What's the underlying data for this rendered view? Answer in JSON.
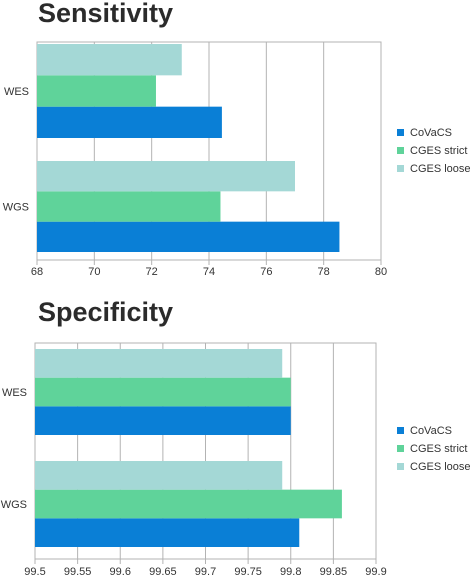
{
  "chart_data": [
    {
      "type": "bar",
      "orientation": "horizontal",
      "title": "Sensitivity",
      "categories": [
        "WES",
        "WGS"
      ],
      "series": [
        {
          "name": "CoVaCS",
          "color": "#0a7fd6",
          "values": [
            74.45,
            78.55
          ]
        },
        {
          "name": "CGES strict",
          "color": "#5fd39a",
          "values": [
            72.15,
            74.4
          ]
        },
        {
          "name": "CGES loose",
          "color": "#a4d8d6",
          "values": [
            73.05,
            77.0
          ]
        }
      ],
      "xlim": [
        68,
        80
      ],
      "xticks": [
        "68",
        "70",
        "72",
        "74",
        "76",
        "78",
        "80"
      ],
      "grid": true,
      "legend": "right"
    },
    {
      "type": "bar",
      "orientation": "horizontal",
      "title": "Specificity",
      "categories": [
        "WES",
        "WGS"
      ],
      "series": [
        {
          "name": "CoVaCS",
          "color": "#0a7fd6",
          "values": [
            99.8,
            99.81
          ]
        },
        {
          "name": "CGES strict",
          "color": "#5fd39a",
          "values": [
            99.8,
            99.86
          ]
        },
        {
          "name": "CGES loose",
          "color": "#a4d8d6",
          "values": [
            99.79,
            99.79
          ]
        }
      ],
      "xlim": [
        99.5,
        99.9
      ],
      "xticks": [
        "99.5",
        "99.55",
        "99.6",
        "99.65",
        "99.7",
        "99.75",
        "99.8",
        "99.85",
        "99.9"
      ],
      "grid": true,
      "legend": "right"
    }
  ]
}
